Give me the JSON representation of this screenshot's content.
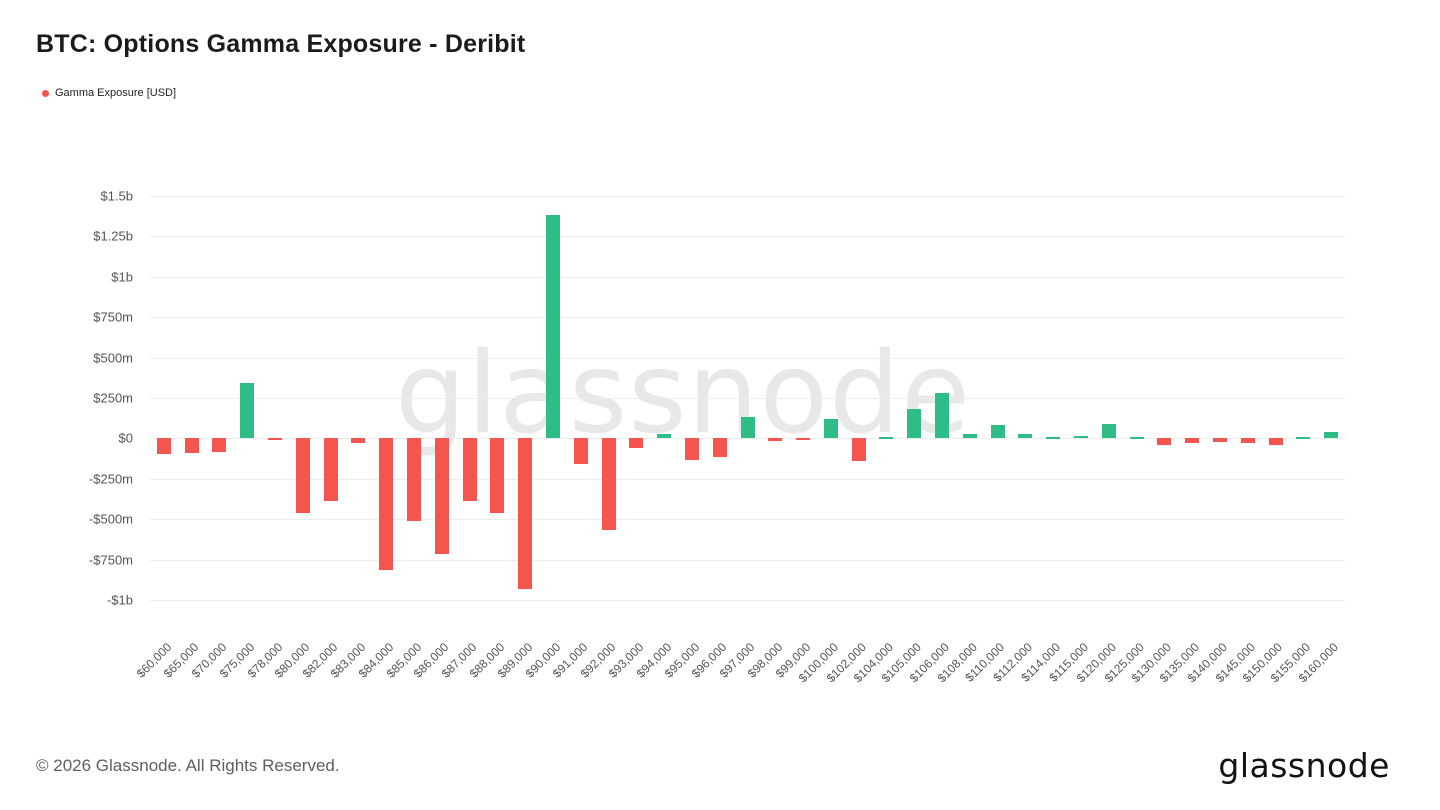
{
  "header": {
    "title": "BTC: Options Gamma Exposure - Deribit"
  },
  "legend": {
    "label": "Gamma Exposure [USD]",
    "dot_color": "#f4554e"
  },
  "watermark": "glassnode",
  "chart_data": {
    "type": "bar",
    "title": "BTC: Options Gamma Exposure - Deribit",
    "xlabel": "",
    "ylabel": "Gamma Exposure [USD]",
    "legend_position": "top-left",
    "grid": "horizontal",
    "ylim_m": [
      -1050,
      1550
    ],
    "y_ticks": [
      "$1.5b",
      "$1.25b",
      "$1b",
      "$750m",
      "$500m",
      "$250m",
      "$0",
      "-$250m",
      "-$500m",
      "-$750m",
      "-$1b"
    ],
    "y_tick_values_m": [
      1500,
      1250,
      1000,
      750,
      500,
      250,
      0,
      -250,
      -500,
      -750,
      -1000
    ],
    "categories": [
      "$60,000",
      "$65,000",
      "$70,000",
      "$75,000",
      "$78,000",
      "$80,000",
      "$82,000",
      "$83,000",
      "$84,000",
      "$85,000",
      "$86,000",
      "$87,000",
      "$88,000",
      "$89,000",
      "$90,000",
      "$91,000",
      "$92,000",
      "$93,000",
      "$94,000",
      "$95,000",
      "$96,000",
      "$97,000",
      "$98,000",
      "$99,000",
      "$100,000",
      "$102,000",
      "$104,000",
      "$105,000",
      "$106,000",
      "$108,000",
      "$110,000",
      "$112,000",
      "$114,000",
      "$115,000",
      "$120,000",
      "$125,000",
      "$130,000",
      "$135,000",
      "$140,000",
      "$145,000",
      "$150,000",
      "$155,000",
      "$160,000"
    ],
    "values_m": [
      -95,
      -90,
      -85,
      340,
      -10,
      -460,
      -390,
      -30,
      -815,
      -510,
      -715,
      -385,
      -465,
      -935,
      1380,
      -160,
      -570,
      -60,
      25,
      -135,
      -115,
      130,
      -15,
      -8,
      120,
      -140,
      8,
      185,
      280,
      25,
      85,
      30,
      10,
      12,
      90,
      8,
      -40,
      -30,
      -25,
      -30,
      -40,
      8,
      40
    ],
    "positive_color": "#2fbd87",
    "negative_color": "#f4554e"
  },
  "footer": {
    "copyright": "© 2026 Glassnode. All Rights Reserved.",
    "brand": "glassnode"
  }
}
